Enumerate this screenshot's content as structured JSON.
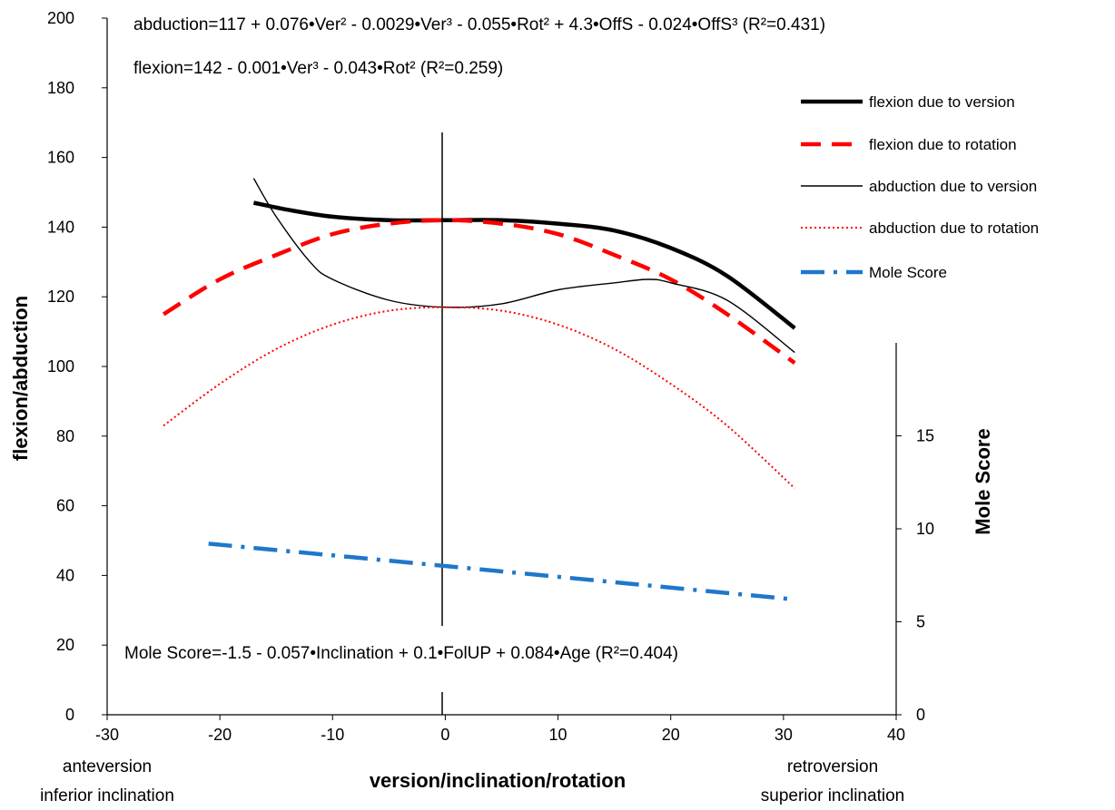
{
  "chart_data": {
    "type": "line",
    "xlabel": "version/inclination/rotation",
    "ylabel": "flexion/abduction",
    "y2label": "Mole Score",
    "xlim": [
      -30,
      40
    ],
    "ylim": [
      0,
      200
    ],
    "y2lim": [
      0,
      16
    ],
    "grid": false,
    "legend_position": "top-right",
    "x_ticks": [
      "-30",
      "-20",
      "-10",
      "0",
      "10",
      "20",
      "30",
      "40"
    ],
    "y_ticks": [
      "0",
      "20",
      "40",
      "60",
      "80",
      "100",
      "120",
      "140",
      "160",
      "180",
      "200"
    ],
    "y2_ticks": [
      "0",
      "5",
      "10",
      "15"
    ],
    "x_note_left": [
      "anteversion",
      "inferior inclination"
    ],
    "x_note_right": [
      "retroversion",
      "superior inclination"
    ],
    "equations": {
      "abduction": "abduction=117 + 0.076•Ver² - 0.0029•Ver³ - 0.055•Rot² + 4.3•OffS - 0.024•OffS³  (R²=0.431)",
      "flexion": "flexion=142 - 0.001•Ver³ - 0.043•Rot²  (R²=0.259)",
      "mole": "Mole Score=-1.5 - 0.057•Inclination + 0.1•FolUP + 0.084•Age   (R²=0.404)"
    },
    "series": [
      {
        "name": "flexion due to version",
        "axis": "left",
        "color": "#000000",
        "style": "thick-solid",
        "x": [
          -17,
          -14,
          -10,
          -5,
          0,
          5,
          10,
          15,
          20,
          25,
          31
        ],
        "y": [
          147,
          145,
          143,
          142,
          142,
          142,
          141,
          139,
          134,
          126,
          111
        ]
      },
      {
        "name": "flexion due to rotation",
        "axis": "left",
        "color": "#ff0000",
        "style": "dashed",
        "x": [
          -25,
          -20,
          -15,
          -10,
          -5,
          0,
          5,
          10,
          15,
          20,
          25,
          31
        ],
        "y": [
          115,
          125,
          132,
          138,
          141,
          142,
          141,
          138,
          132,
          125,
          115,
          101
        ]
      },
      {
        "name": "abduction due to version",
        "axis": "left",
        "color": "#000000",
        "style": "thin-solid",
        "x": [
          -17,
          -15,
          -12,
          -10,
          -5,
          0,
          5,
          10,
          15,
          18,
          20,
          25,
          31
        ],
        "y": [
          154,
          143,
          130,
          125,
          119,
          117,
          118,
          122,
          124,
          125,
          124,
          119,
          104
        ]
      },
      {
        "name": "abduction due to rotation",
        "axis": "left",
        "color": "#ff0000",
        "style": "dotted",
        "x": [
          -25,
          -20,
          -15,
          -10,
          -5,
          0,
          5,
          10,
          15,
          20,
          25,
          31
        ],
        "y": [
          83,
          95,
          105,
          112,
          116,
          117,
          116,
          112,
          105,
          95,
          83,
          65
        ]
      },
      {
        "name": "Mole Score",
        "axis": "right",
        "color": "#1f77c9",
        "style": "dash-dot",
        "x": [
          -21,
          0,
          31
        ],
        "y": [
          9.2,
          8.0,
          6.2
        ]
      }
    ]
  }
}
